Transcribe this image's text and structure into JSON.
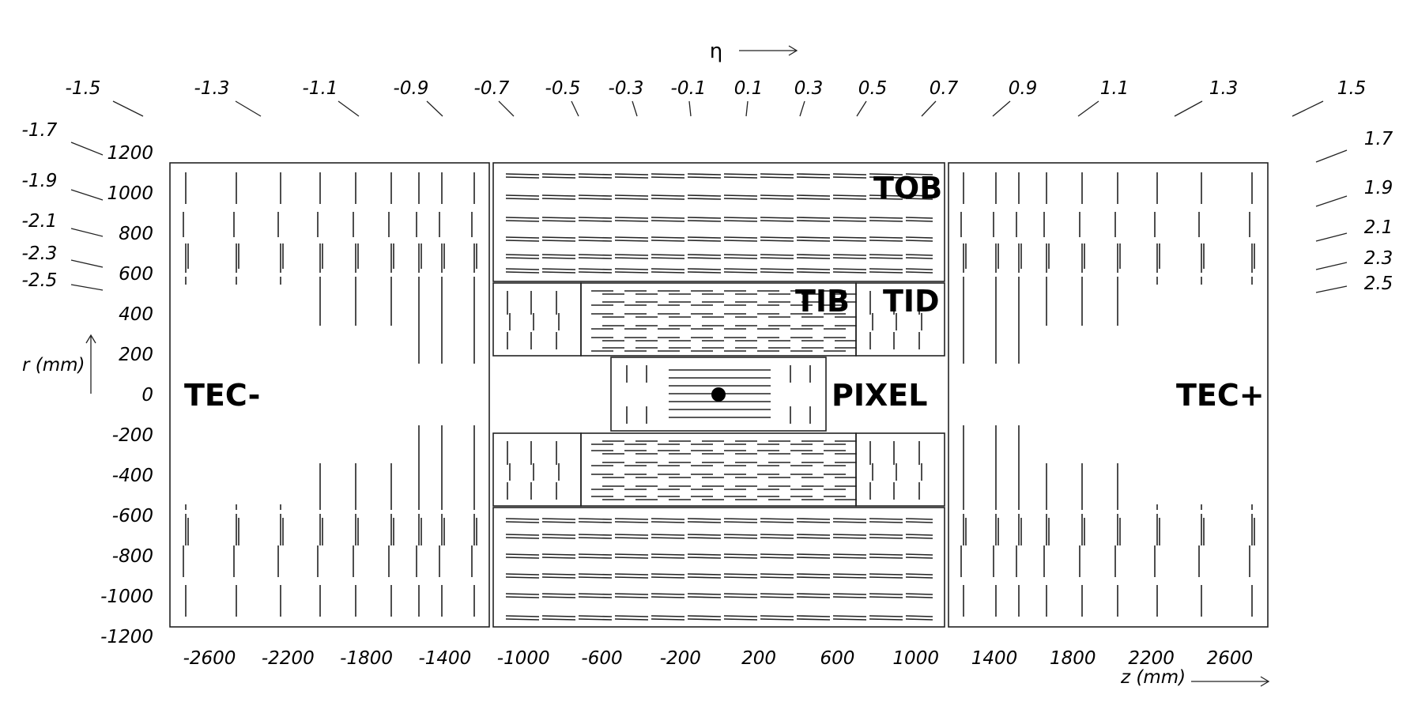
{
  "eta_axis": {
    "title": "η",
    "top_labels": [
      "-1.5",
      "-1.3",
      "-1.1",
      "-0.9",
      "-0.7",
      "-0.5",
      "-0.3",
      "-0.1",
      "0.1",
      "0.3",
      "0.5",
      "0.7",
      "0.9",
      "1.1",
      "1.3",
      "1.5"
    ],
    "left_labels": [
      "-1.7",
      "-1.9",
      "-2.1",
      "-2.3",
      "-2.5"
    ],
    "right_labels": [
      "1.7",
      "1.9",
      "2.1",
      "2.3",
      "2.5"
    ]
  },
  "r_axis": {
    "title": "r (mm)",
    "ticks": [
      "1200",
      "1000",
      "800",
      "600",
      "400",
      "200",
      "0",
      "-200",
      "-400",
      "-600",
      "-800",
      "-1000",
      "-1200"
    ]
  },
  "z_axis": {
    "title": "z (mm)",
    "ticks": [
      "-2600",
      "-2200",
      "-1800",
      "-1400",
      "-1000",
      "-600",
      "-200",
      "200",
      "600",
      "1000",
      "1400",
      "1800",
      "2200",
      "2600"
    ]
  },
  "regions": {
    "tec_minus": "TEC-",
    "tec_plus": "TEC+",
    "tob": "TOB",
    "tib": "TIB",
    "tid": "TID",
    "pixel": "PIXEL"
  }
}
